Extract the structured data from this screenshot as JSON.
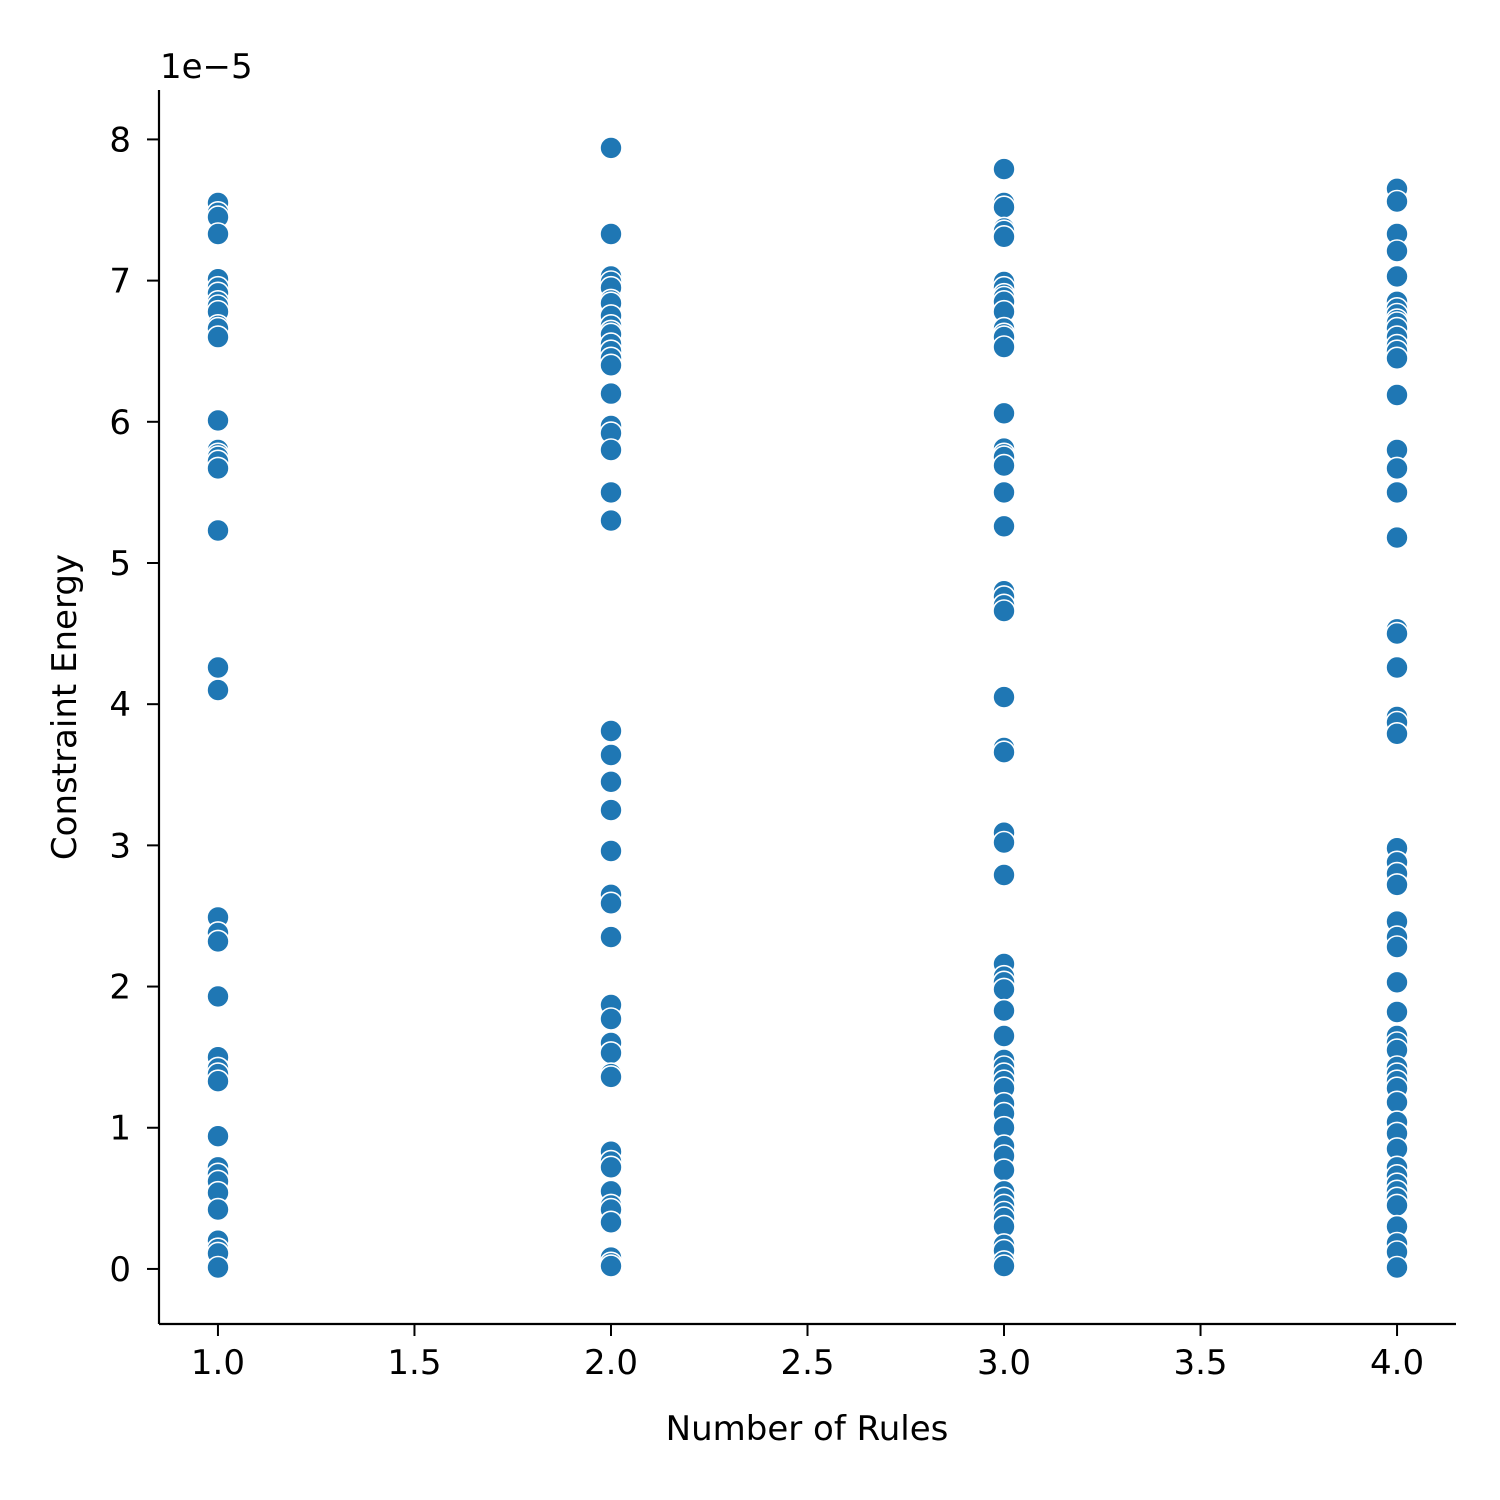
{
  "chart_data": {
    "type": "scatter",
    "title": "",
    "xlabel": "Number of Rules",
    "ylabel": "Constraint Energy",
    "y_offset_label": "1e−5",
    "y_scale_factor": 1e-05,
    "xlim": [
      0.85,
      4.15
    ],
    "ylim": [
      -0.39,
      8.35
    ],
    "xticks": [
      1.0,
      1.5,
      2.0,
      2.5,
      3.0,
      3.5,
      4.0
    ],
    "xtick_labels": [
      "1.0",
      "1.5",
      "2.0",
      "2.5",
      "3.0",
      "3.5",
      "4.0"
    ],
    "yticks": [
      0,
      1,
      2,
      3,
      4,
      5,
      6,
      7,
      8
    ],
    "ytick_labels": [
      "0",
      "1",
      "2",
      "3",
      "4",
      "5",
      "6",
      "7",
      "8"
    ],
    "grid": false,
    "legend": "none",
    "point_color": "#1f77b4",
    "series": [
      {
        "points": [
          [
            1.0,
            7.55
          ],
          [
            1.0,
            7.48
          ],
          [
            1.0,
            7.45
          ],
          [
            1.0,
            7.33
          ],
          [
            1.0,
            7.01
          ],
          [
            1.0,
            6.95
          ],
          [
            1.0,
            6.91
          ],
          [
            1.0,
            6.85
          ],
          [
            1.0,
            6.82
          ],
          [
            1.0,
            6.78
          ],
          [
            1.0,
            6.68
          ],
          [
            1.0,
            6.66
          ],
          [
            1.0,
            6.6
          ],
          [
            1.0,
            6.01
          ],
          [
            1.0,
            5.8
          ],
          [
            1.0,
            5.77
          ],
          [
            1.0,
            5.75
          ],
          [
            1.0,
            5.72
          ],
          [
            1.0,
            5.67
          ],
          [
            1.0,
            5.23
          ],
          [
            1.0,
            4.26
          ],
          [
            1.0,
            4.1
          ],
          [
            1.0,
            2.49
          ],
          [
            1.0,
            2.38
          ],
          [
            1.0,
            2.32
          ],
          [
            1.0,
            1.93
          ],
          [
            1.0,
            1.5
          ],
          [
            1.0,
            1.42
          ],
          [
            1.0,
            1.38
          ],
          [
            1.0,
            1.33
          ],
          [
            1.0,
            0.94
          ],
          [
            1.0,
            0.72
          ],
          [
            1.0,
            0.67
          ],
          [
            1.0,
            0.62
          ],
          [
            1.0,
            0.54
          ],
          [
            1.0,
            0.42
          ],
          [
            1.0,
            0.2
          ],
          [
            1.0,
            0.14
          ],
          [
            1.0,
            0.11
          ],
          [
            1.0,
            0.01
          ],
          [
            2.0,
            7.94
          ],
          [
            2.0,
            7.33
          ],
          [
            2.0,
            7.03
          ],
          [
            2.0,
            6.99
          ],
          [
            2.0,
            6.95
          ],
          [
            2.0,
            6.86
          ],
          [
            2.0,
            6.84
          ],
          [
            2.0,
            6.75
          ],
          [
            2.0,
            6.68
          ],
          [
            2.0,
            6.64
          ],
          [
            2.0,
            6.62
          ],
          [
            2.0,
            6.55
          ],
          [
            2.0,
            6.5
          ],
          [
            2.0,
            6.45
          ],
          [
            2.0,
            6.4
          ],
          [
            2.0,
            6.2
          ],
          [
            2.0,
            5.97
          ],
          [
            2.0,
            5.92
          ],
          [
            2.0,
            5.8
          ],
          [
            2.0,
            5.5
          ],
          [
            2.0,
            5.3
          ],
          [
            2.0,
            3.81
          ],
          [
            2.0,
            3.64
          ],
          [
            2.0,
            3.45
          ],
          [
            2.0,
            3.25
          ],
          [
            2.0,
            2.96
          ],
          [
            2.0,
            2.65
          ],
          [
            2.0,
            2.59
          ],
          [
            2.0,
            2.35
          ],
          [
            2.0,
            1.87
          ],
          [
            2.0,
            1.77
          ],
          [
            2.0,
            1.6
          ],
          [
            2.0,
            1.53
          ],
          [
            2.0,
            1.38
          ],
          [
            2.0,
            1.36
          ],
          [
            2.0,
            0.83
          ],
          [
            2.0,
            0.76
          ],
          [
            2.0,
            0.72
          ],
          [
            2.0,
            0.55
          ],
          [
            2.0,
            0.45
          ],
          [
            2.0,
            0.42
          ],
          [
            2.0,
            0.33
          ],
          [
            2.0,
            0.08
          ],
          [
            2.0,
            0.04
          ],
          [
            2.0,
            0.02
          ],
          [
            3.0,
            7.79
          ],
          [
            3.0,
            7.55
          ],
          [
            3.0,
            7.52
          ],
          [
            3.0,
            7.37
          ],
          [
            3.0,
            7.35
          ],
          [
            3.0,
            7.31
          ],
          [
            3.0,
            6.99
          ],
          [
            3.0,
            6.95
          ],
          [
            3.0,
            6.9
          ],
          [
            3.0,
            6.88
          ],
          [
            3.0,
            6.85
          ],
          [
            3.0,
            6.78
          ],
          [
            3.0,
            6.66
          ],
          [
            3.0,
            6.62
          ],
          [
            3.0,
            6.6
          ],
          [
            3.0,
            6.53
          ],
          [
            3.0,
            6.06
          ],
          [
            3.0,
            5.81
          ],
          [
            3.0,
            5.77
          ],
          [
            3.0,
            5.75
          ],
          [
            3.0,
            5.69
          ],
          [
            3.0,
            5.5
          ],
          [
            3.0,
            5.26
          ],
          [
            3.0,
            4.8
          ],
          [
            3.0,
            4.76
          ],
          [
            3.0,
            4.7
          ],
          [
            3.0,
            4.66
          ],
          [
            3.0,
            4.05
          ],
          [
            3.0,
            3.69
          ],
          [
            3.0,
            3.66
          ],
          [
            3.0,
            3.09
          ],
          [
            3.0,
            3.02
          ],
          [
            3.0,
            2.79
          ],
          [
            3.0,
            2.16
          ],
          [
            3.0,
            2.07
          ],
          [
            3.0,
            2.03
          ],
          [
            3.0,
            1.98
          ],
          [
            3.0,
            1.83
          ],
          [
            3.0,
            1.65
          ],
          [
            3.0,
            1.48
          ],
          [
            3.0,
            1.43
          ],
          [
            3.0,
            1.38
          ],
          [
            3.0,
            1.33
          ],
          [
            3.0,
            1.28
          ],
          [
            3.0,
            1.17
          ],
          [
            3.0,
            1.1
          ],
          [
            3.0,
            1.0
          ],
          [
            3.0,
            0.87
          ],
          [
            3.0,
            0.8
          ],
          [
            3.0,
            0.7
          ],
          [
            3.0,
            0.55
          ],
          [
            3.0,
            0.5
          ],
          [
            3.0,
            0.45
          ],
          [
            3.0,
            0.4
          ],
          [
            3.0,
            0.36
          ],
          [
            3.0,
            0.3
          ],
          [
            3.0,
            0.17
          ],
          [
            3.0,
            0.13
          ],
          [
            3.0,
            0.05
          ],
          [
            3.0,
            0.02
          ],
          [
            4.0,
            7.65
          ],
          [
            4.0,
            7.56
          ],
          [
            4.0,
            7.33
          ],
          [
            4.0,
            7.21
          ],
          [
            4.0,
            7.03
          ],
          [
            4.0,
            6.85
          ],
          [
            4.0,
            6.8
          ],
          [
            4.0,
            6.76
          ],
          [
            4.0,
            6.72
          ],
          [
            4.0,
            6.7
          ],
          [
            4.0,
            6.66
          ],
          [
            4.0,
            6.6
          ],
          [
            4.0,
            6.54
          ],
          [
            4.0,
            6.5
          ],
          [
            4.0,
            6.45
          ],
          [
            4.0,
            6.19
          ],
          [
            4.0,
            5.8
          ],
          [
            4.0,
            5.67
          ],
          [
            4.0,
            5.5
          ],
          [
            4.0,
            5.18
          ],
          [
            4.0,
            4.53
          ],
          [
            4.0,
            4.5
          ],
          [
            4.0,
            4.26
          ],
          [
            4.0,
            3.91
          ],
          [
            4.0,
            3.87
          ],
          [
            4.0,
            3.79
          ],
          [
            4.0,
            2.98
          ],
          [
            4.0,
            2.88
          ],
          [
            4.0,
            2.8
          ],
          [
            4.0,
            2.72
          ],
          [
            4.0,
            2.46
          ],
          [
            4.0,
            2.35
          ],
          [
            4.0,
            2.28
          ],
          [
            4.0,
            2.03
          ],
          [
            4.0,
            1.82
          ],
          [
            4.0,
            1.65
          ],
          [
            4.0,
            1.6
          ],
          [
            4.0,
            1.55
          ],
          [
            4.0,
            1.43
          ],
          [
            4.0,
            1.38
          ],
          [
            4.0,
            1.33
          ],
          [
            4.0,
            1.28
          ],
          [
            4.0,
            1.18
          ],
          [
            4.0,
            1.04
          ],
          [
            4.0,
            0.96
          ],
          [
            4.0,
            0.85
          ],
          [
            4.0,
            0.72
          ],
          [
            4.0,
            0.66
          ],
          [
            4.0,
            0.6
          ],
          [
            4.0,
            0.55
          ],
          [
            4.0,
            0.5
          ],
          [
            4.0,
            0.45
          ],
          [
            4.0,
            0.3
          ],
          [
            4.0,
            0.18
          ],
          [
            4.0,
            0.12
          ],
          [
            4.0,
            0.01
          ]
        ]
      }
    ]
  }
}
